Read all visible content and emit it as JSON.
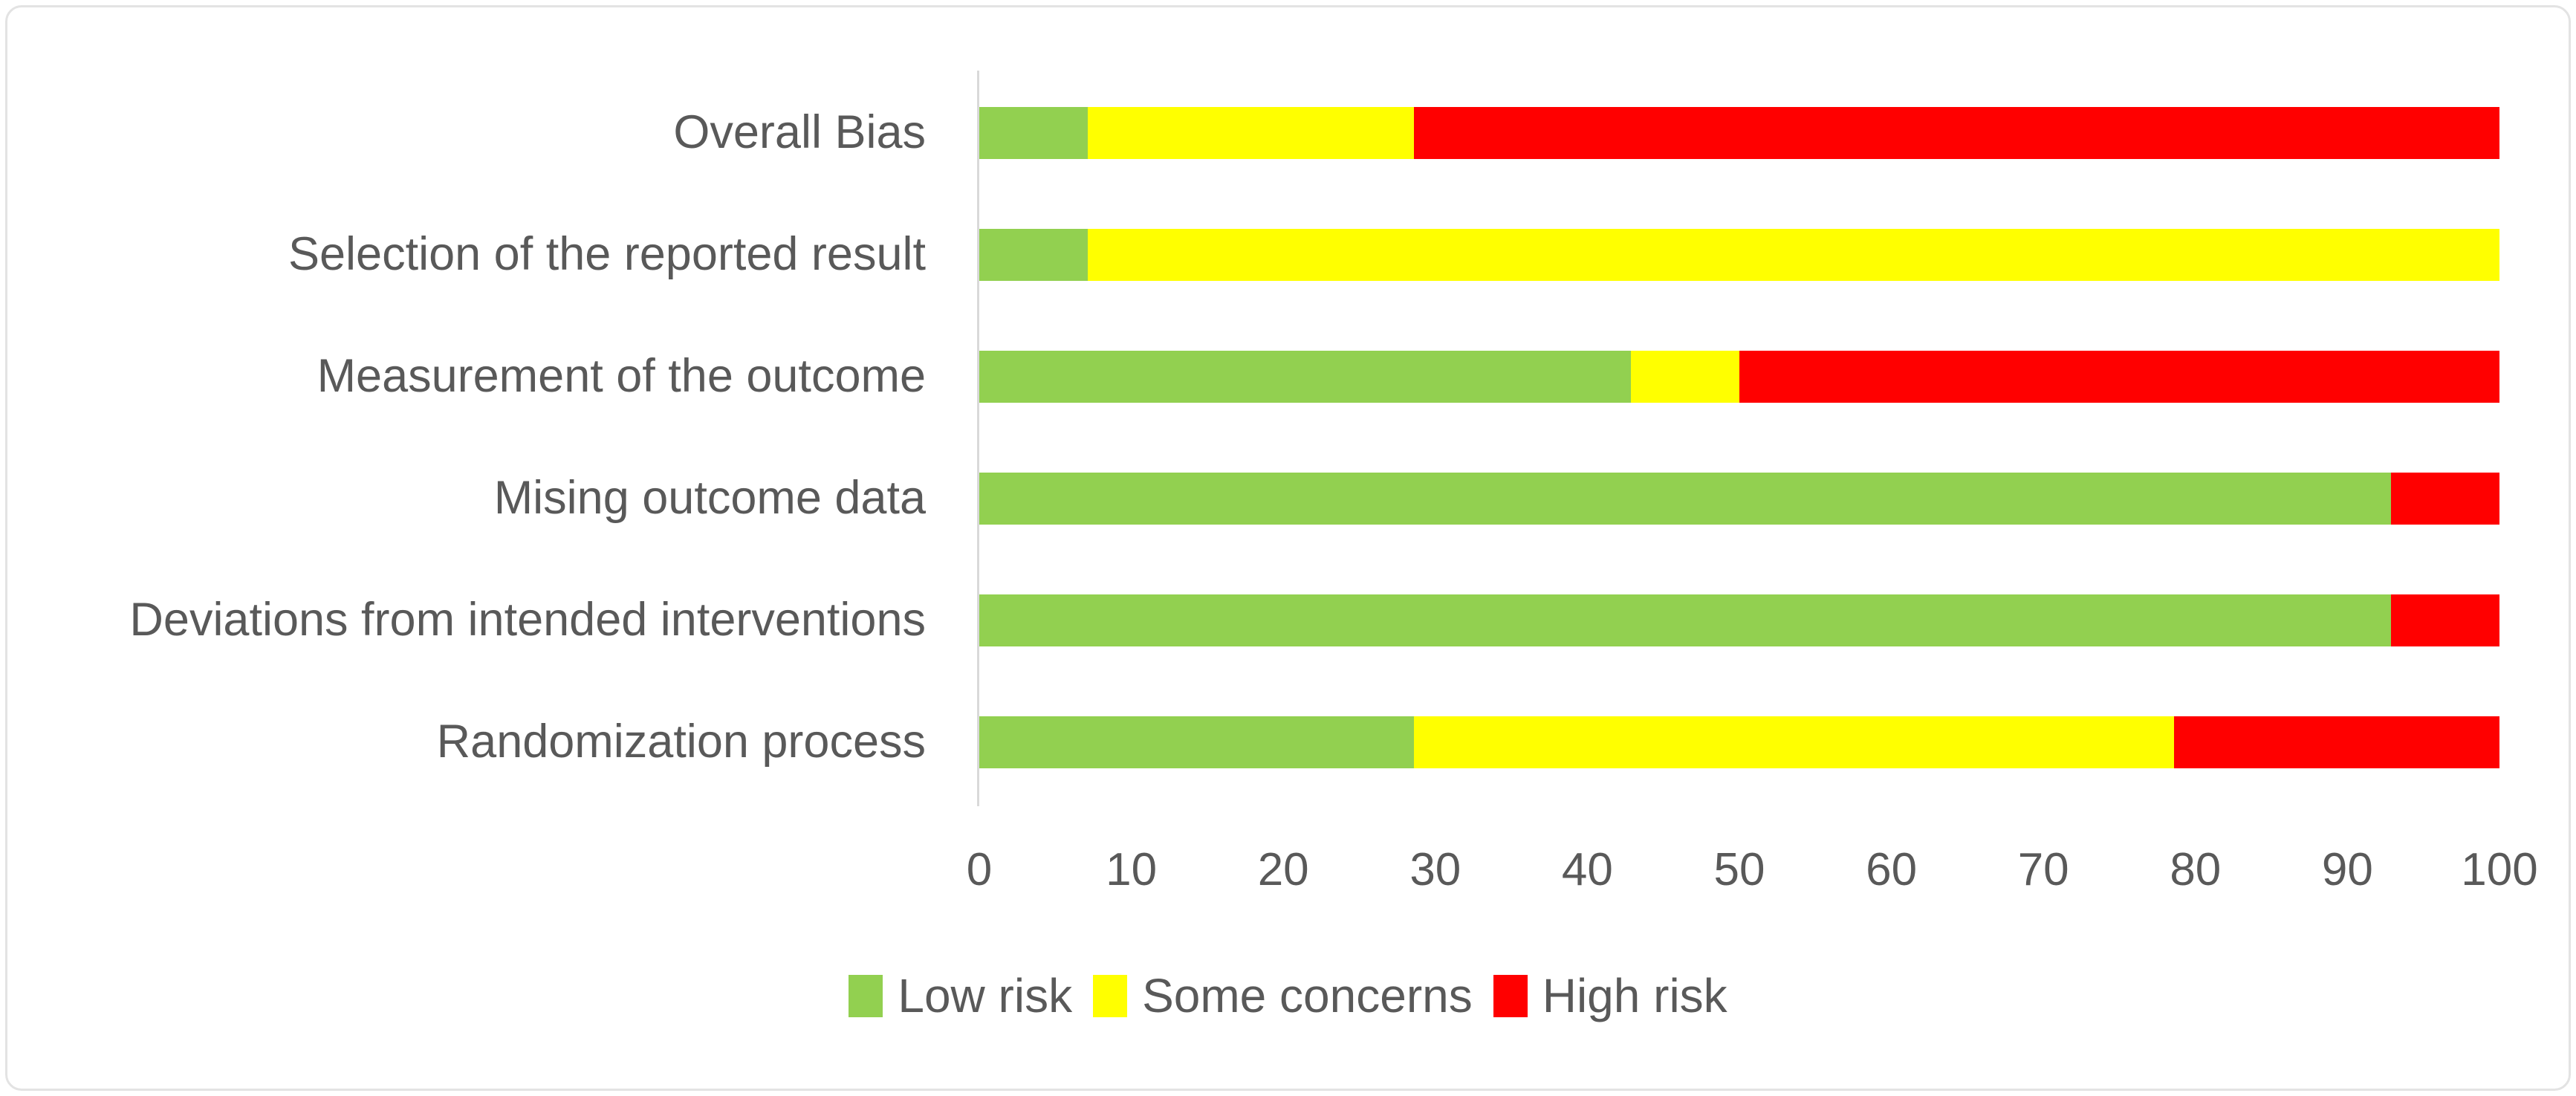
{
  "frame": {
    "background": "#ffffff",
    "border_color": "#e3e3e3",
    "text_color": "#595959",
    "axis_line_color": "#d9d9d9"
  },
  "chart_data": {
    "type": "bar",
    "orientation": "horizontal",
    "stacked": true,
    "stacked_total": 100,
    "title": "",
    "xlabel": "",
    "ylabel": "",
    "grid": false,
    "categories": [
      "Overall Bias",
      "Selection of the reported result",
      "Measurement of the outcome",
      "Mising outcome data",
      "Deviations from intended interventions",
      "Randomization process"
    ],
    "series": [
      {
        "name": "Low risk",
        "color": "#92D050",
        "values": [
          7.14,
          7.14,
          42.86,
          92.86,
          92.86,
          28.57
        ]
      },
      {
        "name": "Some concerns",
        "color": "#FFFF00",
        "values": [
          21.43,
          92.86,
          7.14,
          0,
          0,
          50
        ]
      },
      {
        "name": "High risk",
        "color": "#FF0000",
        "values": [
          71.43,
          0,
          50,
          7.14,
          7.14,
          21.43
        ]
      }
    ],
    "x_axis": {
      "min": 0,
      "max": 100,
      "tick_step": 10,
      "ticks": [
        0,
        10,
        20,
        30,
        40,
        50,
        60,
        70,
        80,
        90,
        100
      ]
    },
    "legend": {
      "position": "bottom-center",
      "entries": [
        "Low risk",
        "Some concerns",
        "High risk"
      ]
    }
  }
}
